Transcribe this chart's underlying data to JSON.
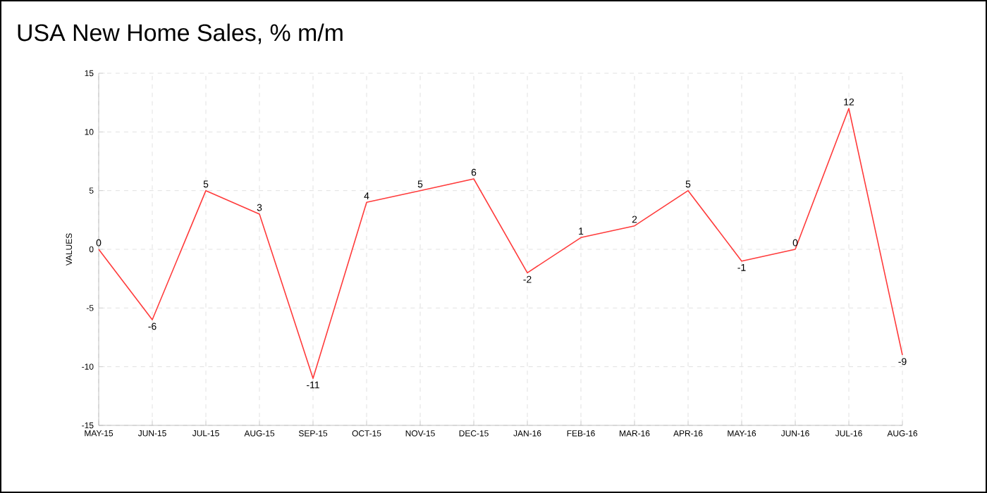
{
  "chart_data": {
    "type": "line",
    "title": "USA New Home Sales, % m/m",
    "ylabel": "VALUES",
    "categories": [
      "MAY-15",
      "JUN-15",
      "JUL-15",
      "AUG-15",
      "SEP-15",
      "OCT-15",
      "NOV-15",
      "DEC-15",
      "JAN-16",
      "FEB-16",
      "MAR-16",
      "APR-16",
      "MAY-16",
      "JUN-16",
      "JUL-16",
      "AUG-16"
    ],
    "values": [
      0,
      -6,
      5,
      3,
      -11,
      4,
      5,
      6,
      -2,
      1,
      2,
      5,
      -1,
      0,
      12,
      -9
    ],
    "color": "#ff3b3b",
    "ylim": [
      -15,
      15
    ],
    "yticks": [
      -15,
      -10,
      -5,
      0,
      5,
      10,
      15
    ],
    "grid": true,
    "data_labels": true,
    "marker": "none",
    "line_style": "solid"
  }
}
